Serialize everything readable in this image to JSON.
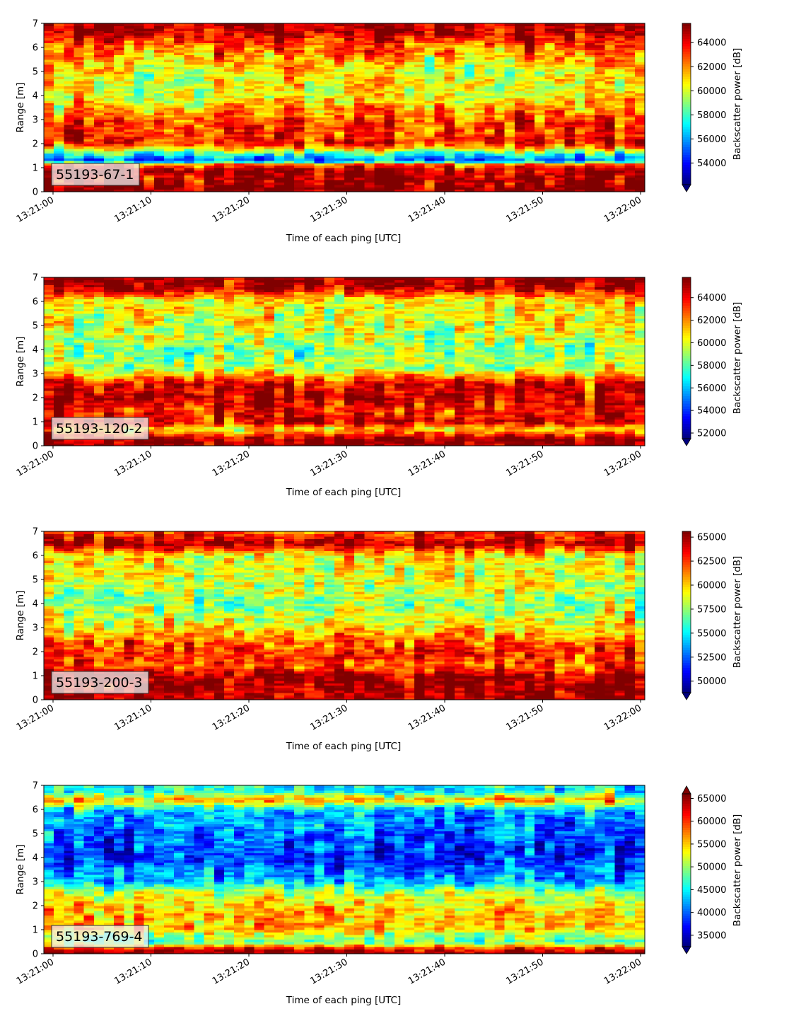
{
  "figure": {
    "panel_count": 4
  },
  "colormap": "jet",
  "chart_data": [
    {
      "type": "heatmap",
      "panel_label": "55193-67-1",
      "xlabel": "Time of each ping [UTC]",
      "ylabel": "Range [m]",
      "x_ticks": [
        "13:21:00",
        "13:21:10",
        "13:21:20",
        "13:21:30",
        "13:21:40",
        "13:21:50",
        "13:22:00"
      ],
      "y_ticks": [
        0,
        1,
        2,
        3,
        4,
        5,
        6,
        7
      ],
      "ylim": [
        0,
        7
      ],
      "colorbar": {
        "label": "Backscatter power [dB]",
        "ticks": [
          54000,
          56000,
          58000,
          60000,
          62000,
          64000
        ],
        "range": [
          52200,
          65600
        ],
        "extend": "min"
      },
      "profile": [
        {
          "range": 0.0,
          "level": 0.98
        },
        {
          "range": 0.15,
          "level": 1.0
        },
        {
          "range": 0.3,
          "level": 0.97
        },
        {
          "range": 0.6,
          "level": 0.93
        },
        {
          "range": 0.9,
          "level": 0.98
        },
        {
          "range": 1.15,
          "level": 0.75
        },
        {
          "range": 1.3,
          "level": 0.2
        },
        {
          "range": 1.5,
          "level": 0.35
        },
        {
          "range": 2.0,
          "level": 0.85
        },
        {
          "range": 3.0,
          "level": 0.8
        },
        {
          "range": 4.0,
          "level": 0.6
        },
        {
          "range": 5.0,
          "level": 0.62
        },
        {
          "range": 6.0,
          "level": 0.75
        },
        {
          "range": 6.5,
          "level": 0.9
        },
        {
          "range": 7.0,
          "level": 0.98
        }
      ]
    },
    {
      "type": "heatmap",
      "panel_label": "55193-120-2",
      "xlabel": "Time of each ping [UTC]",
      "ylabel": "Range [m]",
      "x_ticks": [
        "13:21:00",
        "13:21:10",
        "13:21:20",
        "13:21:30",
        "13:21:40",
        "13:21:50",
        "13:22:00"
      ],
      "y_ticks": [
        0,
        1,
        2,
        3,
        4,
        5,
        6,
        7
      ],
      "ylim": [
        0,
        7
      ],
      "colorbar": {
        "label": "Backscatter power [dB]",
        "ticks": [
          52000,
          54000,
          56000,
          58000,
          60000,
          62000,
          64000
        ],
        "range": [
          51500,
          65800
        ],
        "extend": "min"
      },
      "profile": [
        {
          "range": 0.0,
          "level": 0.96
        },
        {
          "range": 0.3,
          "level": 0.98
        },
        {
          "range": 0.7,
          "level": 0.65
        },
        {
          "range": 1.0,
          "level": 0.9
        },
        {
          "range": 1.5,
          "level": 0.85
        },
        {
          "range": 2.0,
          "level": 0.93
        },
        {
          "range": 2.6,
          "level": 0.9
        },
        {
          "range": 3.2,
          "level": 0.55
        },
        {
          "range": 4.0,
          "level": 0.5
        },
        {
          "range": 5.0,
          "level": 0.6
        },
        {
          "range": 6.0,
          "level": 0.62
        },
        {
          "range": 6.6,
          "level": 0.95
        },
        {
          "range": 7.0,
          "level": 0.98
        }
      ]
    },
    {
      "type": "heatmap",
      "panel_label": "55193-200-3",
      "xlabel": "Time of each ping [UTC]",
      "ylabel": "Range [m]",
      "x_ticks": [
        "13:21:00",
        "13:21:10",
        "13:21:20",
        "13:21:30",
        "13:21:40",
        "13:21:50",
        "13:22:00"
      ],
      "y_ticks": [
        0,
        1,
        2,
        3,
        4,
        5,
        6,
        7
      ],
      "ylim": [
        0,
        7
      ],
      "colorbar": {
        "label": "Backscatter power [dB]",
        "ticks": [
          50000,
          52500,
          55000,
          57500,
          60000,
          62500,
          65000
        ],
        "range": [
          48800,
          65600
        ],
        "extend": "min"
      },
      "profile": [
        {
          "range": 0.0,
          "level": 0.98
        },
        {
          "range": 0.5,
          "level": 0.95
        },
        {
          "range": 1.0,
          "level": 0.97
        },
        {
          "range": 1.4,
          "level": 0.8
        },
        {
          "range": 2.0,
          "level": 0.85
        },
        {
          "range": 2.5,
          "level": 0.75
        },
        {
          "range": 3.0,
          "level": 0.65
        },
        {
          "range": 4.0,
          "level": 0.5
        },
        {
          "range": 5.0,
          "level": 0.58
        },
        {
          "range": 6.0,
          "level": 0.62
        },
        {
          "range": 6.5,
          "level": 0.95
        },
        {
          "range": 7.0,
          "level": 0.8
        }
      ]
    },
    {
      "type": "heatmap",
      "panel_label": "55193-769-4",
      "xlabel": "Time of each ping [UTC]",
      "ylabel": "Range [m]",
      "x_ticks": [
        "13:21:00",
        "13:21:10",
        "13:21:20",
        "13:21:30",
        "13:21:40",
        "13:21:50",
        "13:22:00"
      ],
      "y_ticks": [
        0,
        1,
        2,
        3,
        4,
        5,
        6,
        7
      ],
      "ylim": [
        0,
        7
      ],
      "colorbar": {
        "label": "Backscatter power [dB]",
        "ticks": [
          35000,
          40000,
          45000,
          50000,
          55000,
          60000,
          65000
        ],
        "range": [
          32500,
          66000
        ],
        "extend": "both"
      },
      "profile": [
        {
          "range": 0.0,
          "level": 0.98
        },
        {
          "range": 0.2,
          "level": 0.92
        },
        {
          "range": 0.5,
          "level": 0.45
        },
        {
          "range": 0.8,
          "level": 0.55
        },
        {
          "range": 1.0,
          "level": 0.7
        },
        {
          "range": 1.5,
          "level": 0.68
        },
        {
          "range": 2.0,
          "level": 0.64
        },
        {
          "range": 2.6,
          "level": 0.55
        },
        {
          "range": 3.0,
          "level": 0.3
        },
        {
          "range": 4.0,
          "level": 0.15
        },
        {
          "range": 5.0,
          "level": 0.22
        },
        {
          "range": 6.0,
          "level": 0.3
        },
        {
          "range": 6.4,
          "level": 0.72
        },
        {
          "range": 6.8,
          "level": 0.35
        },
        {
          "range": 7.0,
          "level": 0.4
        }
      ]
    }
  ]
}
